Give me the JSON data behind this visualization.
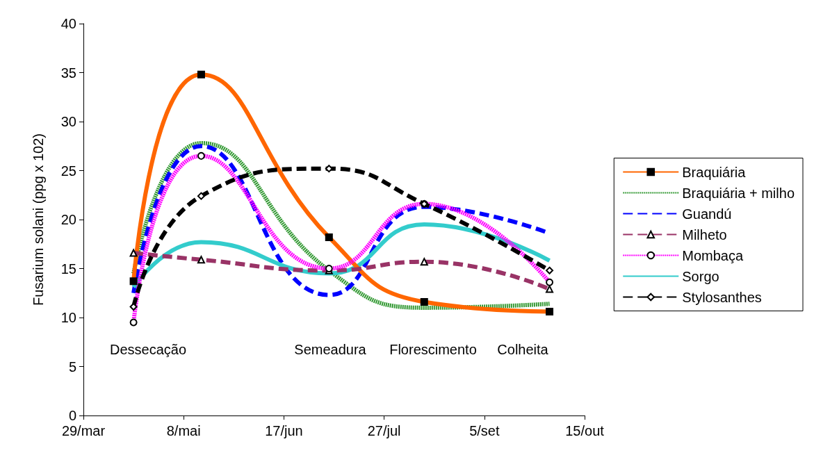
{
  "chart_data": {
    "type": "line",
    "ylabel": "Fusarium solani (ppg x 102)",
    "x": [
      "--04-18",
      "--05-15",
      "--07-05",
      "--08-12",
      "--10-01"
    ],
    "xlim": [
      "--03-29",
      "--10-15"
    ],
    "xticks": [
      {
        "value": "--03-29",
        "label": "29/mar"
      },
      {
        "value": "--05-08",
        "label": "8/mai"
      },
      {
        "value": "--06-17",
        "label": "17/jun"
      },
      {
        "value": "--07-27",
        "label": "27/jul"
      },
      {
        "value": "--09-05",
        "label": "5/set"
      },
      {
        "value": "--10-15",
        "label": "15/out"
      }
    ],
    "ylim": [
      0,
      40
    ],
    "yticks": [
      0,
      5,
      10,
      15,
      20,
      25,
      30,
      35,
      40
    ],
    "grid": false,
    "legend": "right",
    "series": [
      {
        "name": "Braquiária",
        "color": "#ff6600",
        "marker": "square",
        "line_style": "solid",
        "values": [
          13.7,
          34.8,
          18.2,
          11.6,
          10.6
        ]
      },
      {
        "name": "Braquiária + milho",
        "color": "#339933",
        "marker": "none",
        "line_style": "dotted",
        "values": [
          14.5,
          27.8,
          14.8,
          11.0,
          11.4
        ]
      },
      {
        "name": "Guandú",
        "color": "#0000ff",
        "marker": "none",
        "line_style": "dashed",
        "values": [
          12.5,
          27.5,
          12.3,
          21.3,
          18.6
        ]
      },
      {
        "name": "Milheto",
        "color": "#993366",
        "marker": "triangle",
        "line_style": "dashed",
        "values": [
          16.6,
          15.9,
          14.8,
          15.7,
          12.9
        ]
      },
      {
        "name": "Mombaça",
        "color": "#ff00ff",
        "marker": "circle",
        "line_style": "dotted",
        "values": [
          9.5,
          26.5,
          15.0,
          21.6,
          13.6
        ]
      },
      {
        "name": "Sorgo",
        "color": "#33cccc",
        "marker": "none",
        "line_style": "solid",
        "values": [
          13.1,
          17.7,
          14.5,
          19.5,
          15.8
        ]
      },
      {
        "name": "Stylosanthes",
        "color": "#000000",
        "marker": "diamond",
        "line_style": "dashed",
        "values": [
          11.1,
          22.4,
          25.2,
          21.6,
          14.8
        ]
      }
    ],
    "annotations": [
      "Dessecação",
      "Semeadura",
      "Florescimento",
      "Colheita"
    ]
  }
}
